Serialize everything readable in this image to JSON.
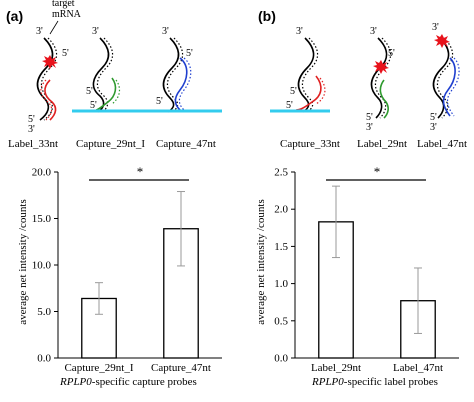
{
  "panel_a": {
    "label": "(a)",
    "diagram": {
      "target_label_line1": "target",
      "target_label_line2": "mRNA",
      "end3": "3'",
      "end5": "5'",
      "names": [
        "Label_33nt",
        "Capture_29nt_I",
        "Capture_47nt"
      ]
    },
    "xlabel_italic": "RPLP0",
    "xlabel_rest": "-specific capture probes"
  },
  "panel_b": {
    "label": "(b)",
    "diagram": {
      "end3": "3'",
      "end5": "5'",
      "names": [
        "Capture_33nt",
        "Label_29nt",
        "Label_47nt"
      ]
    },
    "xlabel_italic": "RPLP0",
    "xlabel_rest": "-specific label probes"
  },
  "colors": {
    "strand": "#000000",
    "red_probe": "#e02020",
    "green_probe": "#2e9a2e",
    "blue_probe": "#1f3fcf",
    "surface": "#33ccee",
    "fluor": "#e8121b",
    "error_bar": "#9a9a9a"
  },
  "chart_data": [
    {
      "type": "bar",
      "ylabel": "average net intensity /counts",
      "xlabel": "RPLP0-specific capture probes",
      "categories": [
        "Capture_29nt_I",
        "Capture_47nt"
      ],
      "values": [
        6.4,
        13.9
      ],
      "error": [
        1.7,
        4.0
      ],
      "ylim": [
        0,
        20
      ],
      "yticks": [
        "0.0",
        "5.0",
        "10.0",
        "15.0",
        "20.0"
      ],
      "significance": "*",
      "grid": false
    },
    {
      "type": "bar",
      "ylabel": "average net intensity /counts",
      "xlabel": "RPLP0-specific label probes",
      "categories": [
        "Label_29nt",
        "Label_47nt"
      ],
      "values": [
        1.83,
        0.77
      ],
      "error": [
        0.48,
        0.44
      ],
      "ylim": [
        0,
        2.5
      ],
      "yticks": [
        "0.0",
        "0.5",
        "1.0",
        "1.5",
        "2.0",
        "2.5"
      ],
      "significance": "*",
      "grid": false
    }
  ]
}
